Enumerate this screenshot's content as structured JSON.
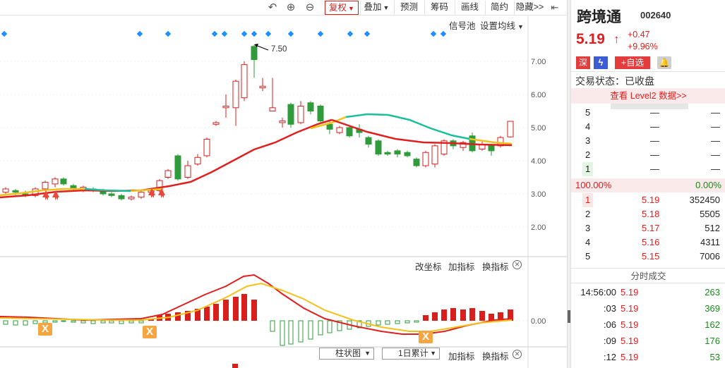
{
  "toolbar": {
    "buttons": [
      "复权",
      "叠加",
      "预测",
      "筹码",
      "画线",
      "简约",
      "隐藏>>"
    ]
  },
  "chart": {
    "signal_pool": "信号池",
    "set_ma": "设置均线",
    "peak_label": "7.50",
    "y_ticks": [
      "7.00",
      "6.00",
      "5.00",
      "4.00",
      "3.00",
      "2.00"
    ],
    "sub_y_tick": "0.00",
    "sub_tools": [
      "改坐标",
      "加指标",
      "换指标"
    ],
    "bottom_select1": "柱状图",
    "bottom_select2": "1日累计",
    "bottom_tools": [
      "加指标",
      "换指标"
    ],
    "up_color": "#d7201e",
    "down_color": "#2f9b3a",
    "cross_badge": "X"
  },
  "chart_data": {
    "type": "candlestick",
    "y_ticks": [
      7.0,
      6.0,
      5.0,
      4.0,
      3.0,
      2.0
    ],
    "peak_annotation": 7.5,
    "sub_indicator_zero": 0.0
  },
  "stock": {
    "name": "跨境通",
    "code": "002640",
    "price": "5.19",
    "change": "+0.47",
    "change_pct": "+9.96%",
    "market_badge": "深",
    "add_watch": "+自选",
    "trade_status": "交易状态：已收盘",
    "level2": "查看 Level2 数据>>"
  },
  "orderbook": {
    "asks": [
      {
        "level": "5",
        "price": "—",
        "vol": "—"
      },
      {
        "level": "4",
        "price": "—",
        "vol": "—"
      },
      {
        "level": "3",
        "price": "—",
        "vol": "—"
      },
      {
        "level": "2",
        "price": "—",
        "vol": "—"
      },
      {
        "level": "1",
        "price": "—",
        "vol": "—"
      }
    ],
    "ratio_left": "100.00%",
    "ratio_right": "0.00%",
    "bids": [
      {
        "level": "1",
        "price": "5.19",
        "vol": "352450"
      },
      {
        "level": "2",
        "price": "5.18",
        "vol": "5505"
      },
      {
        "level": "3",
        "price": "5.17",
        "vol": "512"
      },
      {
        "level": "4",
        "price": "5.16",
        "vol": "4311"
      },
      {
        "level": "5",
        "price": "5.15",
        "vol": "7006"
      }
    ]
  },
  "ticks": {
    "title": "分时成交",
    "rows": [
      {
        "time": "14:56:00",
        "price": "5.19",
        "vol": "263"
      },
      {
        "time": ":03",
        "price": "5.19",
        "vol": "369"
      },
      {
        "time": ":06",
        "price": "5.19",
        "vol": "162"
      },
      {
        "time": ":09",
        "price": "5.19",
        "vol": "176"
      },
      {
        "time": ":12",
        "price": "5.19",
        "vol": "53"
      }
    ]
  }
}
